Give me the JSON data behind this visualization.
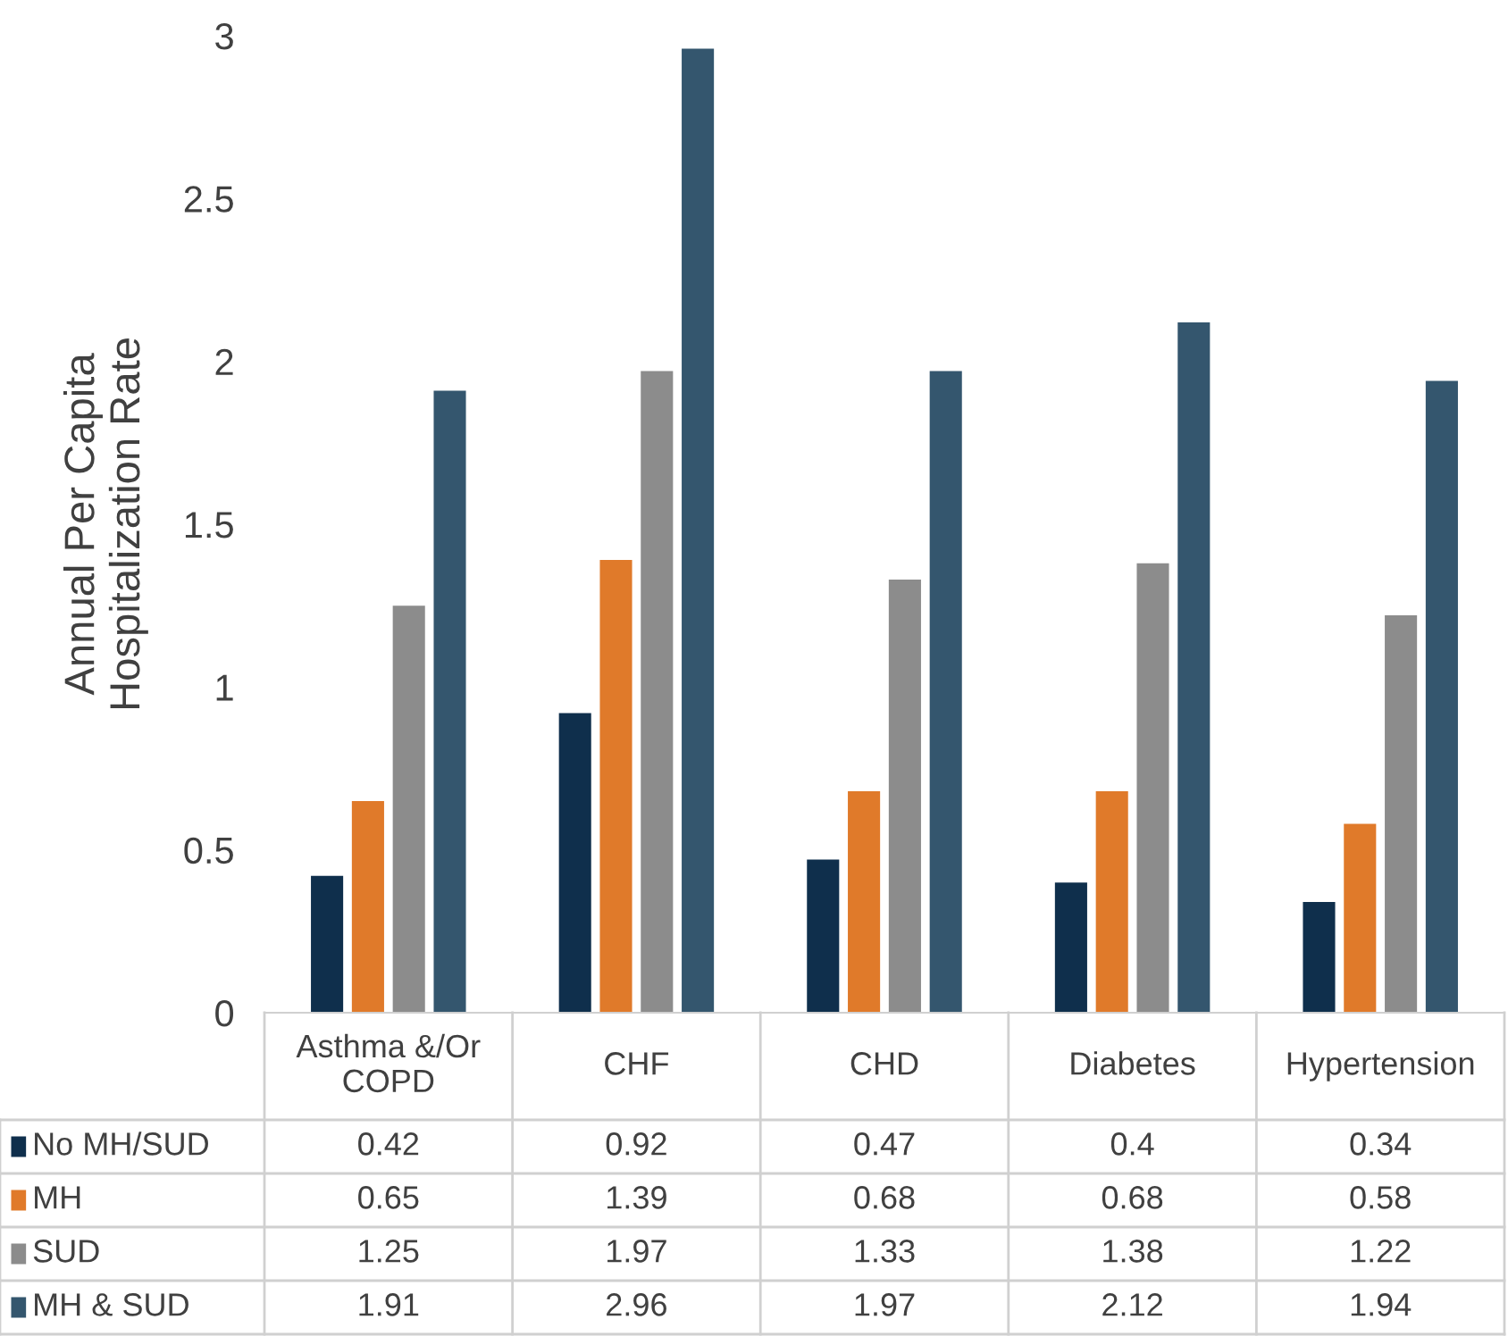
{
  "chart_data": {
    "type": "bar",
    "ylabel": "Annual Per Capita\nHospitalization Rate",
    "categories": [
      "Asthma &/Or\nCOPD",
      "CHF",
      "CHD",
      "Diabetes",
      "Hypertension"
    ],
    "series": [
      {
        "name": "No MH/SUD",
        "color": "#0f2f4c",
        "values": [
          0.42,
          0.92,
          0.47,
          0.4,
          0.34
        ]
      },
      {
        "name": "MH",
        "color": "#e07a2a",
        "values": [
          0.65,
          1.39,
          0.68,
          0.68,
          0.58
        ]
      },
      {
        "name": "SUD",
        "color": "#8c8c8c",
        "values": [
          1.25,
          1.97,
          1.33,
          1.38,
          1.22
        ]
      },
      {
        "name": "MH & SUD",
        "color": "#34566e",
        "values": [
          1.91,
          2.96,
          1.97,
          2.12,
          1.94
        ]
      }
    ],
    "ylim": [
      0,
      3
    ],
    "yticks": [
      0,
      0.5,
      1,
      1.5,
      2,
      2.5,
      3
    ],
    "grid": false,
    "legend": "bottom",
    "data_labels": true
  }
}
